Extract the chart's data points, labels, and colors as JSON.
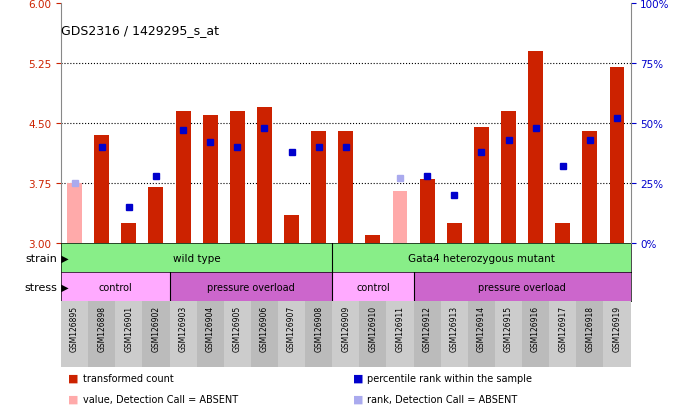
{
  "title": "GDS2316 / 1429295_s_at",
  "samples": [
    "GSM126895",
    "GSM126898",
    "GSM126901",
    "GSM126902",
    "GSM126903",
    "GSM126904",
    "GSM126905",
    "GSM126906",
    "GSM126907",
    "GSM126908",
    "GSM126909",
    "GSM126910",
    "GSM126911",
    "GSM126912",
    "GSM126913",
    "GSM126914",
    "GSM126915",
    "GSM126916",
    "GSM126917",
    "GSM126918",
    "GSM126919"
  ],
  "bar_values": [
    null,
    4.35,
    3.25,
    3.7,
    4.65,
    4.6,
    4.65,
    4.7,
    3.35,
    4.4,
    4.4,
    3.1,
    null,
    3.8,
    3.25,
    4.45,
    4.65,
    5.4,
    3.25,
    4.4,
    5.2
  ],
  "bar_absent_values": [
    3.75,
    null,
    null,
    null,
    null,
    null,
    null,
    null,
    null,
    null,
    null,
    null,
    3.65,
    null,
    null,
    null,
    null,
    null,
    null,
    null,
    null
  ],
  "rank_values": [
    null,
    40,
    15,
    28,
    47,
    42,
    40,
    48,
    38,
    40,
    40,
    null,
    null,
    28,
    20,
    38,
    43,
    48,
    32,
    43,
    52
  ],
  "rank_absent_values": [
    25,
    null,
    null,
    null,
    null,
    null,
    null,
    null,
    null,
    null,
    null,
    null,
    27,
    null,
    null,
    null,
    null,
    null,
    null,
    null,
    null
  ],
  "ylim_left": [
    3.0,
    6.0
  ],
  "ylim_right": [
    0,
    100
  ],
  "yticks_left": [
    3.0,
    3.75,
    4.5,
    5.25,
    6.0
  ],
  "yticks_right": [
    0,
    25,
    50,
    75,
    100
  ],
  "hlines": [
    3.75,
    4.5,
    5.25
  ],
  "bar_color": "#cc2200",
  "bar_absent_color": "#ffaaaa",
  "rank_color": "#0000cc",
  "rank_absent_color": "#aaaaee",
  "strain_color": "#88ee88",
  "stress_color_control": "#ffaaff",
  "stress_color_pressure": "#cc66cc",
  "strain_labels": [
    "wild type",
    "Gata4 heterozygous mutant"
  ],
  "stress_labels": [
    "control",
    "pressure overload",
    "control",
    "pressure overload"
  ],
  "legend_items": [
    "transformed count",
    "percentile rank within the sample",
    "value, Detection Call = ABSENT",
    "rank, Detection Call = ABSENT"
  ],
  "legend_colors": [
    "#cc2200",
    "#0000cc",
    "#ffaaaa",
    "#aaaaee"
  ],
  "bar_width": 0.55,
  "tick_bg_color": "#cccccc"
}
